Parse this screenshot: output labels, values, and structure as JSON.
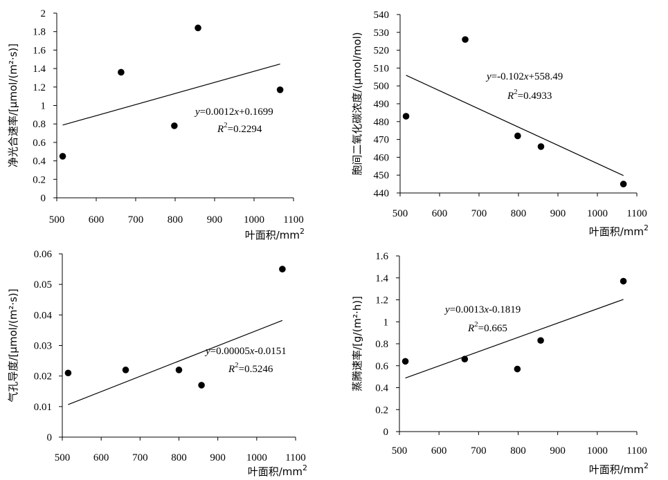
{
  "chart_data": [
    {
      "type": "scatter",
      "x": [
        515,
        663,
        798,
        858,
        1066
      ],
      "y": [
        0.45,
        1.36,
        0.78,
        1.84,
        1.17
      ],
      "xlabel": "叶面积/mm",
      "xlabel_sup": "2",
      "ylabel": "净光合速率/[μmol/(m²·s)]",
      "xlim": [
        500,
        1100
      ],
      "xticks": [
        500,
        600,
        700,
        800,
        900,
        1000,
        1100
      ],
      "ylim": [
        0,
        2
      ],
      "yticks": [
        "0",
        "0.2",
        "0.4",
        "0.6",
        "0.8",
        "1",
        "1.2",
        "1.4",
        "1.6",
        "1.8",
        "2"
      ],
      "trendline": {
        "slope": 0.0012,
        "intercept": 0.1699
      },
      "equation": {
        "y": "y",
        "rest1": "=0.0012",
        "x": "x",
        "rest2": "+0.1699",
        "r": "R",
        "r_sup": "2",
        "r_rest": "=0.2294"
      }
    },
    {
      "type": "scatter",
      "x": [
        515,
        665,
        798,
        857,
        1066
      ],
      "y": [
        483,
        526,
        472,
        466,
        445
      ],
      "xlabel": "叶面积/mm",
      "xlabel_sup": "2",
      "ylabel": "胞间二氧化碳浓度/(μmol/mol)",
      "xlim": [
        500,
        1100
      ],
      "xticks": [
        500,
        600,
        700,
        800,
        900,
        1000,
        1100
      ],
      "ylim": [
        440,
        540
      ],
      "yticks": [
        "440",
        "450",
        "460",
        "470",
        "480",
        "490",
        "500",
        "510",
        "520",
        "530",
        "540"
      ],
      "trendline": {
        "slope": -0.102,
        "intercept": 558.49
      },
      "equation": {
        "y": "y",
        "rest1": "=-0.102",
        "x": "x",
        "rest2": "+558.49",
        "r": "R",
        "r_sup": "2",
        "r_rest": "=0.4933"
      }
    },
    {
      "type": "scatter",
      "x": [
        515,
        663,
        800,
        858,
        1066
      ],
      "y": [
        0.021,
        0.022,
        0.022,
        0.017,
        0.055
      ],
      "xlabel": "叶面积/mm",
      "xlabel_sup": "2",
      "ylabel": "气孔导度/[μmol/(m²·s)]",
      "xlim": [
        500,
        1100
      ],
      "xticks": [
        500,
        600,
        700,
        800,
        900,
        1000,
        1100
      ],
      "ylim": [
        0,
        0.06
      ],
      "yticks": [
        "0",
        "0.01",
        "0.02",
        "0.03",
        "0.04",
        "0.05",
        "0.06"
      ],
      "trendline": {
        "slope": 5e-05,
        "intercept": -0.0151
      },
      "equation": {
        "y": "y",
        "rest1": "=0.00005",
        "x": "x",
        "rest2": "-0.0151",
        "r": "R",
        "r_sup": "2",
        "r_rest": "=0.5246"
      }
    },
    {
      "type": "scatter",
      "x": [
        515,
        665,
        798,
        857,
        1066
      ],
      "y": [
        0.64,
        0.66,
        0.57,
        0.83,
        1.37
      ],
      "xlabel": "叶面积/mm",
      "xlabel_sup": "2",
      "ylabel": "蒸腾速率/[g/(m²·h)]",
      "xlim": [
        500,
        1100
      ],
      "xticks": [
        500,
        600,
        700,
        800,
        900,
        1000,
        1100
      ],
      "ylim": [
        0,
        1.6
      ],
      "yticks": [
        "0",
        "0.2",
        "0.4",
        "0.6",
        "0.8",
        "1",
        "1.2",
        "1.4",
        "1.6"
      ],
      "trendline": {
        "slope": 0.0013,
        "intercept": -0.1819
      },
      "equation": {
        "y": "y",
        "rest1": "=0.0013",
        "x": "x",
        "rest2": "-0.1819",
        "r": "R",
        "r_sup": "2",
        "r_rest": "=0.665"
      }
    }
  ]
}
